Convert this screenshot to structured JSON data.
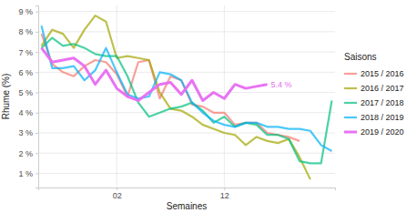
{
  "chart_data": {
    "type": "line",
    "x_label": "Semaines",
    "y_label": "Rhume (%)",
    "legend_title": "Saisons",
    "legend": "right",
    "grid": true,
    "categories": [
      null,
      null,
      null,
      null,
      null,
      null,
      null,
      "02",
      null,
      null,
      null,
      null,
      null,
      null,
      null,
      null,
      null,
      "12",
      null,
      null,
      null,
      null,
      null,
      null,
      null,
      null,
      null,
      null
    ],
    "ylim": [
      0.3,
      9.3
    ],
    "yticks": [
      {
        "value": 1,
        "label": "1 %"
      },
      {
        "value": 2,
        "label": "2 %"
      },
      {
        "value": 3,
        "label": "3 %"
      },
      {
        "value": 4,
        "label": "4 %"
      },
      {
        "value": 5,
        "label": "5 %"
      },
      {
        "value": 6,
        "label": "6 %"
      },
      {
        "value": 7,
        "label": "7 %"
      },
      {
        "value": 8,
        "label": "8 %"
      },
      {
        "value": 9,
        "label": "9 %"
      }
    ],
    "series": [
      {
        "name": "2015 / 2016",
        "color": "#f8766d",
        "line_style": "solid",
        "values": [
          7.9,
          6.4,
          6.0,
          5.8,
          6.3,
          6.6,
          6.5,
          5.9,
          4.8,
          6.5,
          6.6,
          4.7,
          5.8,
          5.6,
          4.4,
          4.3,
          4.0,
          4.0,
          3.4,
          3.5,
          3.5,
          3.0,
          2.9,
          2.8,
          2.6,
          null,
          null,
          null
        ]
      },
      {
        "name": "2016 / 2017",
        "color": "#a3a500",
        "line_style": "solid",
        "values": [
          7.3,
          8.1,
          7.9,
          7.2,
          8.1,
          8.8,
          8.5,
          6.7,
          6.8,
          6.7,
          6.6,
          5.0,
          4.2,
          4.1,
          3.8,
          3.4,
          3.2,
          3.0,
          2.9,
          2.4,
          2.8,
          2.6,
          2.5,
          2.7,
          1.8,
          0.7,
          null,
          null
        ]
      },
      {
        "name": "2017 / 2018",
        "color": "#00bf7d",
        "line_style": "solid",
        "values": [
          7.2,
          7.7,
          7.3,
          7.4,
          7.2,
          6.9,
          6.8,
          6.8,
          5.8,
          4.5,
          3.8,
          4.0,
          4.2,
          4.3,
          4.5,
          4.1,
          3.5,
          3.8,
          3.3,
          3.5,
          3.4,
          2.9,
          2.9,
          2.7,
          1.6,
          1.5,
          1.5,
          4.6
        ]
      },
      {
        "name": "2018 / 2019",
        "color": "#00b0f6",
        "line_style": "solid",
        "values": [
          8.3,
          6.2,
          6.2,
          6.3,
          5.6,
          6.1,
          7.2,
          6.0,
          4.9,
          4.7,
          4.8,
          6.0,
          5.9,
          5.6,
          4.5,
          4.0,
          3.6,
          3.4,
          3.3,
          3.5,
          3.5,
          3.3,
          3.3,
          3.2,
          3.2,
          3.1,
          2.4,
          2.1
        ]
      },
      {
        "name": "2019 / 2020",
        "color": "#e76bf3",
        "line_style": "thick",
        "values": [
          7.2,
          6.5,
          6.6,
          6.7,
          6.3,
          5.4,
          6.1,
          5.2,
          4.8,
          4.6,
          5.0,
          5.4,
          5.5,
          4.9,
          5.6,
          4.6,
          5.0,
          4.7,
          5.4,
          5.2,
          5.3,
          5.4,
          null,
          null,
          null,
          null,
          null,
          null
        ]
      }
    ],
    "annotations": [
      {
        "text": "5.4 %",
        "x": 21,
        "y": 5.4,
        "color": "#e76bf3"
      }
    ]
  }
}
